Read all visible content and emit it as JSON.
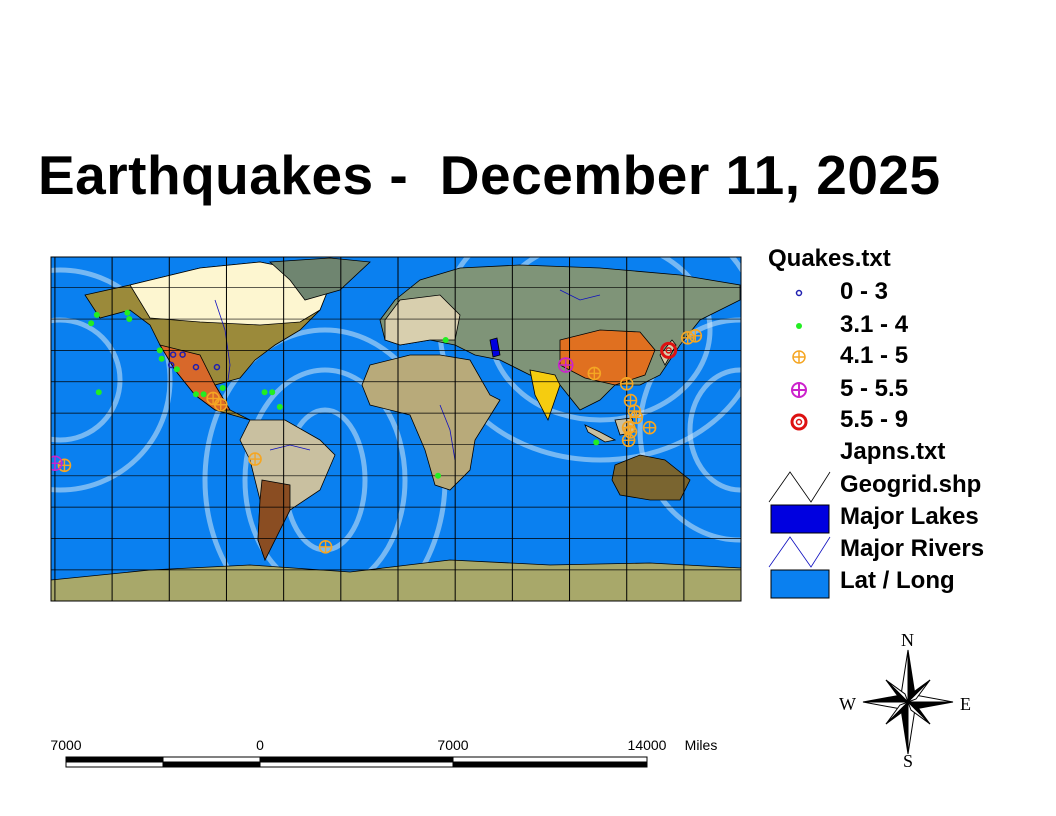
{
  "title": "Earthquakes -  December 11, 2025",
  "colors": {
    "ocean": "#0a80f0",
    "lakes": "#0000e0",
    "rivers": "#1010c0",
    "q0_3": "#2020b0",
    "q3_4": "#22ee22",
    "q4_5": "#f5a623",
    "q5_55": "#cc22cc",
    "q55_9": "#dd1111"
  },
  "legend": {
    "quakes_title": "Quakes.txt",
    "classes": [
      {
        "label": "0 - 3",
        "icon": "small-ring-icon",
        "color": "#2020b0"
      },
      {
        "label": "3.1 - 4",
        "icon": "dot-icon",
        "color": "#22ee22"
      },
      {
        "label": "4.1 - 5",
        "icon": "crosshair-circle-icon",
        "color": "#f5a623"
      },
      {
        "label": "5 - 5.5",
        "icon": "crosshair-circle-icon",
        "color": "#cc22cc"
      },
      {
        "label": "5.5 - 9",
        "icon": "bullseye-icon",
        "color": "#dd1111"
      }
    ],
    "japan_layer": "Japns.txt",
    "geogrid": "Geogrid.shp",
    "lakes": "Major Lakes",
    "rivers": "Major Rivers",
    "latlong": "Lat / Long"
  },
  "scale_bar": {
    "labels": [
      "7000",
      "0",
      "7000",
      "14000"
    ],
    "unit": "Miles"
  },
  "compass": {
    "n": "N",
    "s": "S",
    "e": "E",
    "w": "W"
  },
  "quakes": [
    {
      "lon": -158,
      "lat": 57,
      "class": 1
    },
    {
      "lon": -161,
      "lat": 53,
      "class": 1
    },
    {
      "lon": -142,
      "lat": 58,
      "class": 1
    },
    {
      "lon": -141,
      "lat": 55,
      "class": 1
    },
    {
      "lon": -125,
      "lat": 40,
      "class": 1
    },
    {
      "lon": -124,
      "lat": 36,
      "class": 1
    },
    {
      "lon": -116,
      "lat": 31,
      "class": 1
    },
    {
      "lon": -157,
      "lat": 20,
      "class": 1
    },
    {
      "lon": -106,
      "lat": 19,
      "class": 1
    },
    {
      "lon": -102,
      "lat": 19,
      "class": 1
    },
    {
      "lon": -92,
      "lat": 22,
      "class": 1
    },
    {
      "lon": -70,
      "lat": 20,
      "class": 1
    },
    {
      "lon": -66,
      "lat": 20,
      "class": 1
    },
    {
      "lon": -62,
      "lat": 13,
      "class": 1
    },
    {
      "lon": 25,
      "lat": 45,
      "class": 1
    },
    {
      "lon": 104,
      "lat": -4,
      "class": 1
    },
    {
      "lon": 21,
      "lat": -20,
      "class": 1
    },
    {
      "lon": -118,
      "lat": 38,
      "class": 0
    },
    {
      "lon": -113,
      "lat": 38,
      "class": 0
    },
    {
      "lon": -119,
      "lat": 33,
      "class": 0
    },
    {
      "lon": -106,
      "lat": 32,
      "class": 0
    },
    {
      "lon": -95,
      "lat": 32,
      "class": 0
    },
    {
      "lon": -97,
      "lat": 17,
      "class": 2
    },
    {
      "lon": -93,
      "lat": 14,
      "class": 2
    },
    {
      "lon": -75,
      "lat": -12,
      "class": 2
    },
    {
      "lon": -38,
      "lat": -54,
      "class": 2
    },
    {
      "lon": -175,
      "lat": -15,
      "class": 2
    },
    {
      "lon": 152,
      "lat": 46,
      "class": 2
    },
    {
      "lon": 156,
      "lat": 47,
      "class": 2
    },
    {
      "lon": 103,
      "lat": 29,
      "class": 2
    },
    {
      "lon": 120,
      "lat": 24,
      "class": 2
    },
    {
      "lon": 122,
      "lat": 16,
      "class": 2
    },
    {
      "lon": 124,
      "lat": 11,
      "class": 2
    },
    {
      "lon": 125,
      "lat": 8,
      "class": 2
    },
    {
      "lon": 121,
      "lat": 3,
      "class": 2
    },
    {
      "lon": 122,
      "lat": 1,
      "class": 2
    },
    {
      "lon": 121,
      "lat": -3,
      "class": 2
    },
    {
      "lon": 132,
      "lat": 3,
      "class": 2
    },
    {
      "lon": 88,
      "lat": 33,
      "class": 3
    },
    {
      "lon": -180,
      "lat": -14,
      "class": 3
    },
    {
      "lon": 142,
      "lat": 40,
      "class": 4
    }
  ]
}
